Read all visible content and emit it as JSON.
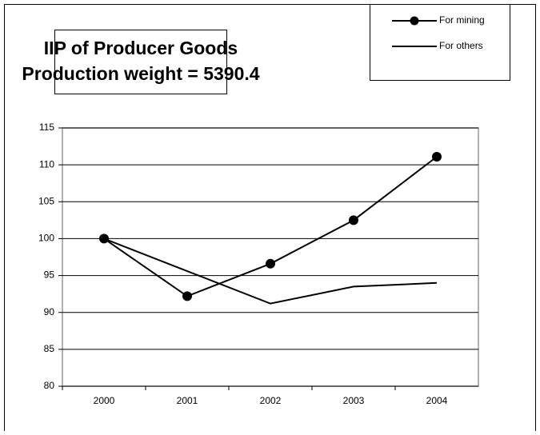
{
  "chart_data": {
    "type": "line",
    "title": "IIP of Producer Goods",
    "subtitle": "Production weight = 5390.4",
    "categories": [
      "2000",
      "2001",
      "2002",
      "2003",
      "2004"
    ],
    "series": [
      {
        "name": "For mining",
        "color": "#000000",
        "marker": "circle",
        "values": [
          100,
          92.2,
          96.6,
          102.5,
          111.1
        ]
      },
      {
        "name": "For others",
        "color": "#000000",
        "values": [
          100,
          95.6,
          91.2,
          93.5,
          94.0
        ]
      }
    ],
    "ylim": [
      80,
      115
    ],
    "yticks": [
      80,
      85,
      90,
      95,
      100,
      105,
      110,
      115
    ],
    "grid": true,
    "legend": "top-right"
  }
}
